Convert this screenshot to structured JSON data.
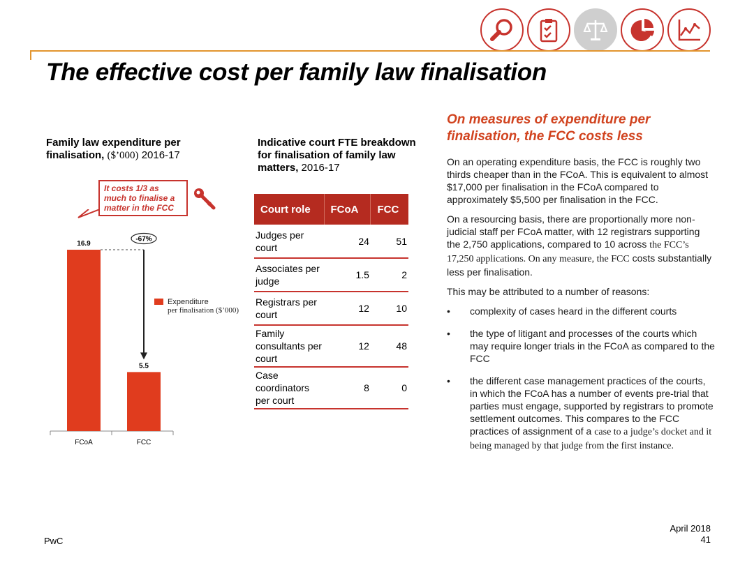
{
  "title": "The effective cost per family law finalisation",
  "nav_icons": [
    {
      "name": "search-icon",
      "active": false
    },
    {
      "name": "clipboard-icon",
      "active": false
    },
    {
      "name": "scales-icon",
      "active": true
    },
    {
      "name": "pie-chart-icon",
      "active": false
    },
    {
      "name": "line-chart-icon",
      "active": false
    }
  ],
  "colors": {
    "accent": "#c7332d",
    "bar": "#e03c1e",
    "rule": "#e2942d",
    "heading": "#d1431f",
    "table_header": "#b52b20"
  },
  "left_chart": {
    "title_bold": "Family law expenditure per finalisation,",
    "title_unit": "($’000)",
    "title_year": "2016-17",
    "callout": "It costs 1/3 as much to finalise a matter in the FCC",
    "change_label": "-67%",
    "legend": {
      "line1": "Expenditure",
      "line2_prefix": "per finalisation ",
      "line2_unit": "($’000)"
    }
  },
  "chart_data": {
    "type": "bar",
    "title": "Family law expenditure per finalisation, ($’000) 2016-17",
    "categories": [
      "FCoA",
      "FCC"
    ],
    "series": [
      {
        "name": "Expenditure per finalisation ($’000)",
        "values": [
          16.9,
          5.5
        ]
      }
    ],
    "value_labels": [
      "16.9",
      "5.5"
    ],
    "ylim": [
      0,
      16.9
    ],
    "annotation": "-67%",
    "legend_position": "right"
  },
  "table": {
    "title_bold": "Indicative court FTE breakdown for finalisation of family law matters,",
    "title_year": "2016-17",
    "headers": [
      "Court role",
      "FCoA",
      "FCC"
    ],
    "rows": [
      {
        "role": "Judges per court",
        "fcoa": "24",
        "fcc": "51"
      },
      {
        "role": "Associates per judge",
        "fcoa": "1.5",
        "fcc": "2"
      },
      {
        "role": "Registrars per court",
        "fcoa": "12",
        "fcc": "10"
      },
      {
        "role": "Family consultants per court",
        "fcoa": "12",
        "fcc": "48"
      },
      {
        "role": "Case coordinators per court",
        "fcoa": "8",
        "fcc": "0"
      }
    ]
  },
  "right": {
    "heading": "On measures of expenditure per finalisation, the FCC costs less",
    "para1": "On an operating expenditure basis, the FCC is roughly two thirds cheaper than in the FCoA. This is equivalent to almost $17,000 per finalisation in the FCoA compared to approximately $5,500 per finalisation in the FCC.",
    "para2_a": "On a resourcing basis, there are proportionally more non-judicial staff per FCoA matter, with 12 registrars supporting the 2,750 applications, compared to 10 across ",
    "para2_b": "the FCC’s 17,250 applications. On any measure, the FCC",
    "para2_c": " costs substantially less per finalisation.",
    "para3": "This may be attributed to a number of reasons:",
    "bullet_char": "•",
    "bullet1": "complexity of cases heard in the different courts",
    "bullet2": "the type of litigant and processes of the courts which may require longer trials in the FCoA as compared to the FCC",
    "bullet3_a": "the different case management practices of the courts, in which the FCoA has a number of events pre-trial that parties must engage, supported by registrars to promote settlement outcomes. This compares to the FCC practices of assignment of a ",
    "bullet3_b": "case to a judge’s docket and it being managed by",
    "bullet3_c": " that judge from the first instance."
  },
  "footer": {
    "brand": "PwC",
    "date": "April 2018",
    "page": "41"
  }
}
